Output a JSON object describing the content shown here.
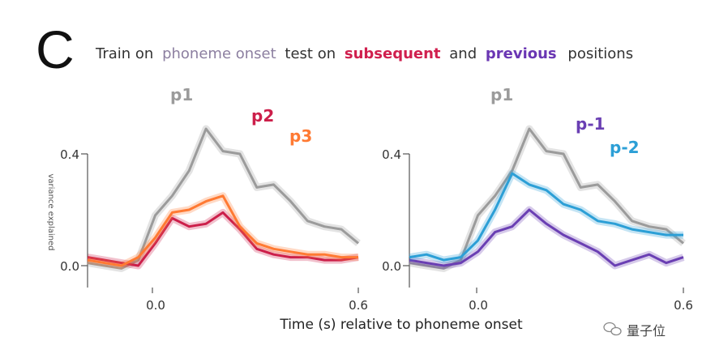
{
  "panel_letter": "C",
  "title": {
    "pre": "Train on",
    "phoneme_onset": "phoneme onset",
    "mid": "test on",
    "subsequent": "subsequent",
    "and": "and",
    "previous": "previous",
    "post": "positions"
  },
  "xlabel": "Time (s) relative to phoneme onset",
  "ylabel": "variance explained",
  "watermark": "量子位",
  "colors": {
    "p1": "#9b9b9b",
    "p2": "#cc1f4a",
    "p3": "#ff7a33",
    "pm1": "#6a3fb3",
    "pm2": "#2c9fd6",
    "onset_word": "#8c7fa0",
    "subsequent_word": "#d01f4e",
    "previous_word": "#6a36b3"
  },
  "chart_data": [
    {
      "type": "line",
      "panel": "left",
      "xlim": [
        -0.2,
        0.6
      ],
      "ylim": [
        -0.05,
        0.45
      ],
      "x_ticks": [
        "0.0",
        "0.6"
      ],
      "y_ticks": [
        "0.0",
        "0.4"
      ],
      "xlabel": "Time (s) relative to phoneme onset",
      "ylabel": "variance explained",
      "x": [
        -0.2,
        -0.15,
        -0.1,
        -0.05,
        0.0,
        0.05,
        0.1,
        0.15,
        0.2,
        0.25,
        0.3,
        0.35,
        0.4,
        0.45,
        0.5,
        0.55,
        0.6
      ],
      "series": [
        {
          "name": "p1",
          "values": [
            0.01,
            0.0,
            -0.01,
            0.02,
            0.18,
            0.25,
            0.34,
            0.49,
            0.41,
            0.4,
            0.28,
            0.29,
            0.23,
            0.16,
            0.14,
            0.13,
            0.08
          ]
        },
        {
          "name": "p2",
          "values": [
            0.03,
            0.02,
            0.01,
            0.0,
            0.08,
            0.17,
            0.14,
            0.15,
            0.19,
            0.13,
            0.06,
            0.04,
            0.03,
            0.03,
            0.02,
            0.02,
            0.03
          ]
        },
        {
          "name": "p3",
          "values": [
            0.02,
            0.01,
            0.0,
            0.03,
            0.1,
            0.19,
            0.2,
            0.23,
            0.25,
            0.14,
            0.08,
            0.06,
            0.05,
            0.04,
            0.04,
            0.03,
            0.03
          ]
        }
      ]
    },
    {
      "type": "line",
      "panel": "right",
      "xlim": [
        -0.2,
        0.6
      ],
      "ylim": [
        -0.05,
        0.45
      ],
      "x_ticks": [
        "0.0",
        "0.6"
      ],
      "y_ticks": [
        "0.0",
        "0.4"
      ],
      "xlabel": "Time (s) relative to phoneme onset",
      "x": [
        -0.2,
        -0.15,
        -0.1,
        -0.05,
        0.0,
        0.05,
        0.1,
        0.15,
        0.2,
        0.25,
        0.3,
        0.35,
        0.4,
        0.45,
        0.5,
        0.55,
        0.6
      ],
      "series": [
        {
          "name": "p1",
          "values": [
            0.01,
            0.0,
            -0.01,
            0.02,
            0.18,
            0.25,
            0.34,
            0.49,
            0.41,
            0.4,
            0.28,
            0.29,
            0.23,
            0.16,
            0.14,
            0.13,
            0.08
          ]
        },
        {
          "name": "p-1",
          "values": [
            0.02,
            0.01,
            0.0,
            0.01,
            0.05,
            0.12,
            0.14,
            0.2,
            0.15,
            0.11,
            0.08,
            0.05,
            0.0,
            0.02,
            0.04,
            0.01,
            0.03
          ]
        },
        {
          "name": "p-2",
          "values": [
            0.03,
            0.04,
            0.02,
            0.03,
            0.09,
            0.2,
            0.33,
            0.29,
            0.27,
            0.22,
            0.2,
            0.16,
            0.15,
            0.13,
            0.12,
            0.11,
            0.11
          ]
        }
      ]
    }
  ]
}
